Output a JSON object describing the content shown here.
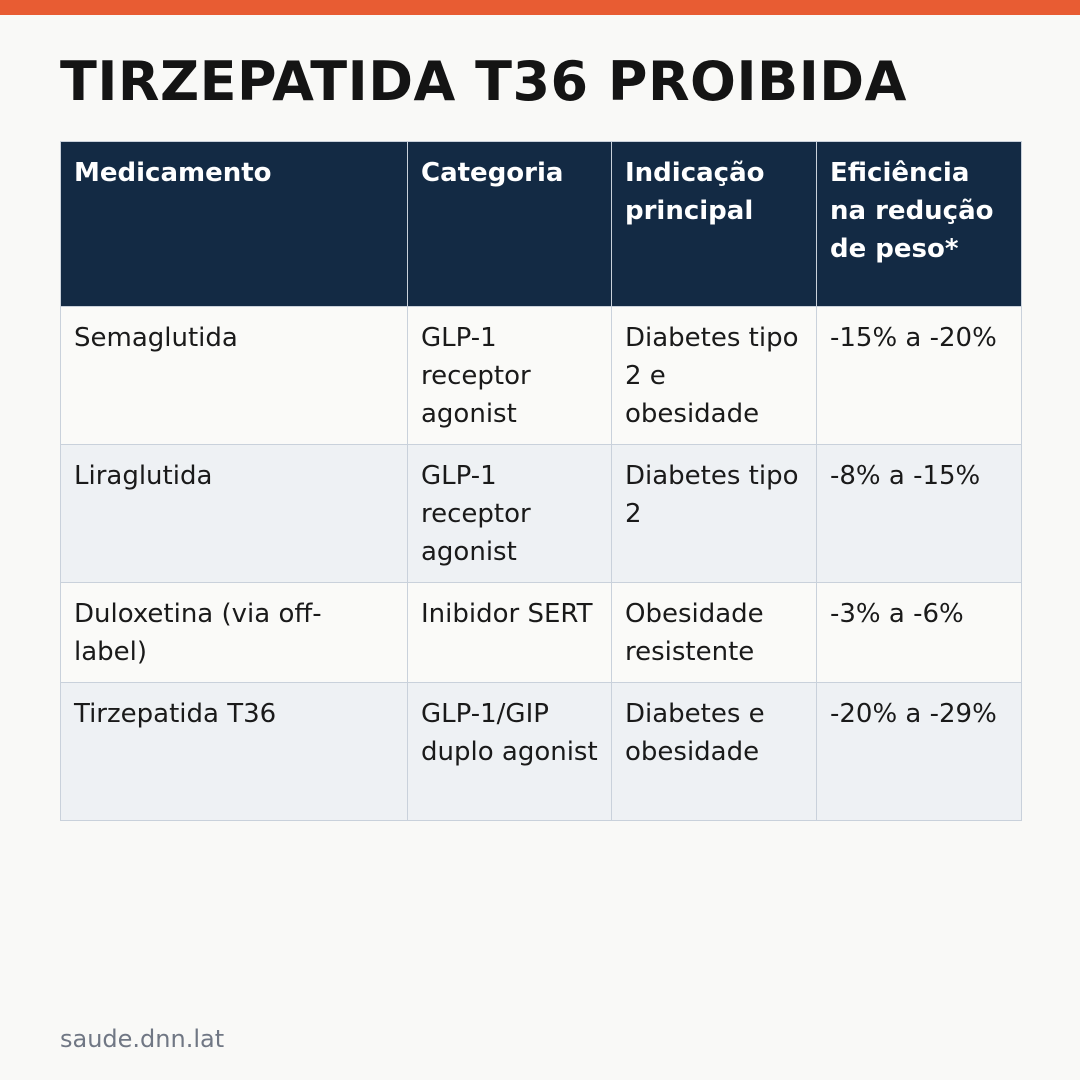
{
  "title": "TIRZEPATIDA T36 PROIBIDA",
  "colors": {
    "accent_bar": "#e85c33",
    "header_background": "#132a44",
    "row_alt_background": "#eef1f4"
  },
  "table": {
    "headers": [
      "Medicamento",
      "Categoria",
      "Indicação principal",
      "Eficiência na redução de peso*"
    ],
    "rows": [
      [
        "Semaglutida",
        "GLP-1 receptor agonist",
        "Diabetes tipo 2 e obesidade",
        "-15% a -20%"
      ],
      [
        "Liraglutida",
        "GLP-1 receptor agonist",
        "Diabetes tipo 2",
        "-8% a -15%"
      ],
      [
        "Duloxetina (via off-label)",
        "Inibidor SERT",
        "Obesidade resistente",
        "-3% a -6%"
      ],
      [
        "Tirzepatida T36",
        "GLP-1/GIP duplo agonist",
        "Diabetes e obesidade",
        "-20% a -29%"
      ]
    ]
  },
  "footer": "saude.dnn.lat"
}
